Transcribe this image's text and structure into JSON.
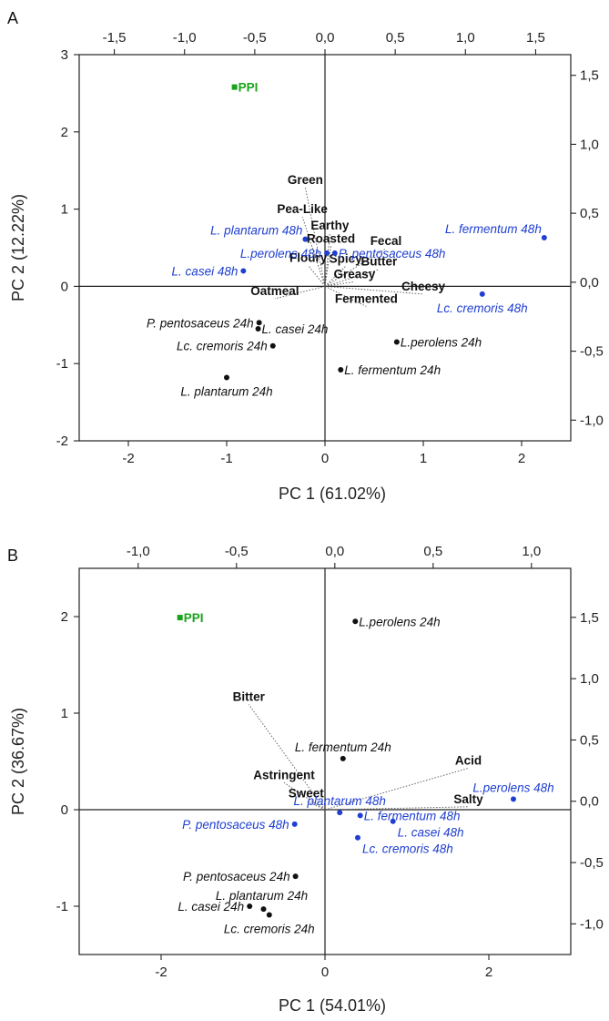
{
  "colors": {
    "score_48h": "#1f3fd1",
    "score_24h": "#111111",
    "ppi": "#1aa31a",
    "loading_line": "#555555"
  },
  "chart_data": [
    {
      "type": "scatter",
      "panel_letter": "A",
      "xlabel": "PC 1 (61.02%)",
      "ylabel": "PC 2 (12.22%)",
      "xlim": [
        -2.5,
        2.5
      ],
      "ylim": [
        -2,
        3
      ],
      "x_ticks": [
        -2,
        -1,
        0,
        1,
        2
      ],
      "x_tick_labels": [
        "-2",
        "-1",
        "0",
        "1",
        "2"
      ],
      "y_ticks": [
        -2,
        -1,
        0,
        1,
        2,
        3
      ],
      "y_tick_labels": [
        "-2",
        "-1",
        "0",
        "1",
        "2",
        "3"
      ],
      "top_xlim": [
        -1.75,
        1.75
      ],
      "top_ticks": [
        -1.5,
        -1.0,
        -0.5,
        0.0,
        0.5,
        1.0,
        1.5
      ],
      "top_tick_labels": [
        "-1,5",
        "-1,0",
        "-0,5",
        "0,0",
        "0,5",
        "1,0",
        "1,5"
      ],
      "right_ylim": [
        -1.15,
        1.65
      ],
      "right_ticks": [
        -1.0,
        -0.5,
        0.0,
        0.5,
        1.0,
        1.5
      ],
      "right_tick_labels": [
        "-1,0",
        "-0,5",
        "0,0",
        "0,5",
        "1,0",
        "1,5"
      ],
      "grid": false,
      "reference_lines": [
        0,
        0
      ],
      "points": [
        {
          "label": "L. fermentum 48h",
          "x": 2.23,
          "y": 0.63,
          "group": "48h",
          "pos": "left-above"
        },
        {
          "label": "L. plantarum 48h",
          "x": -0.2,
          "y": 0.61,
          "group": "48h",
          "pos": "left-above"
        },
        {
          "label": "L.perolens 48h",
          "x": 0.02,
          "y": 0.43,
          "group": "48h",
          "pos": "left"
        },
        {
          "label": "P. pentosaceus 48h",
          "x": 0.1,
          "y": 0.43,
          "group": "48h",
          "pos": "right"
        },
        {
          "label": "L. casei 48h",
          "x": -0.83,
          "y": 0.2,
          "group": "48h",
          "pos": "left"
        },
        {
          "label": "Lc. cremoris 48h",
          "x": 1.6,
          "y": -0.1,
          "group": "48h",
          "pos": "below"
        },
        {
          "label": "P. pentosaceus 24h",
          "x": -0.67,
          "y": -0.47,
          "group": "24h",
          "pos": "left"
        },
        {
          "label": "L. casei 24h",
          "x": -0.68,
          "y": -0.55,
          "group": "24h",
          "pos": "right"
        },
        {
          "label": "Lc. cremoris 24h",
          "x": -0.53,
          "y": -0.77,
          "group": "24h",
          "pos": "left"
        },
        {
          "label": "L.perolens 24h",
          "x": 0.73,
          "y": -0.72,
          "group": "24h",
          "pos": "right"
        },
        {
          "label": "L. fermentum 24h",
          "x": 0.16,
          "y": -1.08,
          "group": "24h",
          "pos": "right"
        },
        {
          "label": "L. plantarum 24h",
          "x": -1.0,
          "y": -1.18,
          "group": "24h",
          "pos": "below"
        },
        {
          "label": "PPI",
          "x": -0.92,
          "y": 2.58,
          "group": "ppi",
          "pos": "right"
        }
      ],
      "loadings": [
        {
          "label": "Green",
          "x": -0.2,
          "y": 1.28
        },
        {
          "label": "Pea-Like",
          "x": -0.23,
          "y": 0.9
        },
        {
          "label": "Earthy",
          "x": 0.05,
          "y": 0.69
        },
        {
          "label": "Roasted",
          "x": 0.06,
          "y": 0.52
        },
        {
          "label": "Fecal",
          "x": 0.62,
          "y": 0.49
        },
        {
          "label": "Floury",
          "x": -0.17,
          "y": 0.27
        },
        {
          "label": "Spicy",
          "x": 0.21,
          "y": 0.26
        },
        {
          "label": "Butter",
          "x": 0.55,
          "y": 0.22
        },
        {
          "label": "Greasy",
          "x": 0.3,
          "y": 0.06
        },
        {
          "label": "Cheesy",
          "x": 1.0,
          "y": -0.1
        },
        {
          "label": "Oatmeal",
          "x": -0.51,
          "y": -0.16
        },
        {
          "label": "Fermented",
          "x": 0.42,
          "y": -0.26
        }
      ]
    },
    {
      "type": "scatter",
      "panel_letter": "B",
      "xlabel": "PC 1 (54.01%)",
      "ylabel": "PC 2 (36.67%)",
      "xlim": [
        -3,
        3
      ],
      "ylim": [
        -1.5,
        2.5
      ],
      "x_ticks": [
        -2,
        0,
        2
      ],
      "x_tick_labels": [
        "-2",
        "0",
        "2"
      ],
      "y_ticks": [
        -1,
        0,
        1,
        2
      ],
      "y_tick_labels": [
        "-1",
        "0",
        "1",
        "2"
      ],
      "top_xlim": [
        -1.3,
        1.2
      ],
      "top_ticks": [
        -1.0,
        -0.5,
        0.0,
        0.5,
        1.0
      ],
      "top_tick_labels": [
        "-1,0",
        "-0,5",
        "0,0",
        "0,5",
        "1,0"
      ],
      "right_ylim": [
        -1.25,
        1.9
      ],
      "right_ticks": [
        -1.0,
        -0.5,
        0.0,
        0.5,
        1.0,
        1.5
      ],
      "right_tick_labels": [
        "-1,0",
        "-0,5",
        "0,0",
        "0,5",
        "1,0",
        "1,5"
      ],
      "grid": false,
      "reference_lines": [
        0,
        0
      ],
      "points": [
        {
          "label": "L.perolens 24h",
          "x": 0.37,
          "y": 1.95,
          "group": "24h",
          "pos": "right"
        },
        {
          "label": "L. fermentum 24h",
          "x": 0.22,
          "y": 0.53,
          "group": "24h",
          "pos": "above"
        },
        {
          "label": "L.perolens 48h",
          "x": 2.3,
          "y": 0.11,
          "group": "48h",
          "pos": "above"
        },
        {
          "label": "L. plantarum 48h",
          "x": 0.18,
          "y": -0.03,
          "group": "48h",
          "pos": "above"
        },
        {
          "label": "L. fermentum 48h",
          "x": 0.43,
          "y": -0.06,
          "group": "48h",
          "pos": "right"
        },
        {
          "label": "L. casei 48h",
          "x": 0.83,
          "y": -0.12,
          "group": "48h",
          "pos": "below-right"
        },
        {
          "label": "Lc. cremoris 48h",
          "x": 0.4,
          "y": -0.29,
          "group": "48h",
          "pos": "below-right"
        },
        {
          "label": "P. pentosaceus 48h",
          "x": -0.37,
          "y": -0.15,
          "group": "48h",
          "pos": "left"
        },
        {
          "label": "P. pentosaceus 24h",
          "x": -0.36,
          "y": -0.69,
          "group": "24h",
          "pos": "left"
        },
        {
          "label": "L. plantarum 24h",
          "x": -0.75,
          "y": -1.03,
          "group": "24h",
          "pos": "above-right"
        },
        {
          "label": "L. casei 24h",
          "x": -0.92,
          "y": -1.0,
          "group": "24h",
          "pos": "left"
        },
        {
          "label": "Lc. cremoris 24h",
          "x": -0.68,
          "y": -1.09,
          "group": "24h",
          "pos": "below"
        },
        {
          "label": "PPI",
          "x": -1.77,
          "y": 1.99,
          "group": "ppi",
          "pos": "right"
        }
      ],
      "loadings": [
        {
          "label": "Bitter",
          "x": -0.93,
          "y": 1.09
        },
        {
          "label": "Acid",
          "x": 1.75,
          "y": 0.43
        },
        {
          "label": "Astringent",
          "x": -0.5,
          "y": 0.28
        },
        {
          "label": "Sweet",
          "x": -0.23,
          "y": 0.09
        },
        {
          "label": "Salty",
          "x": 1.75,
          "y": 0.03
        }
      ]
    }
  ]
}
